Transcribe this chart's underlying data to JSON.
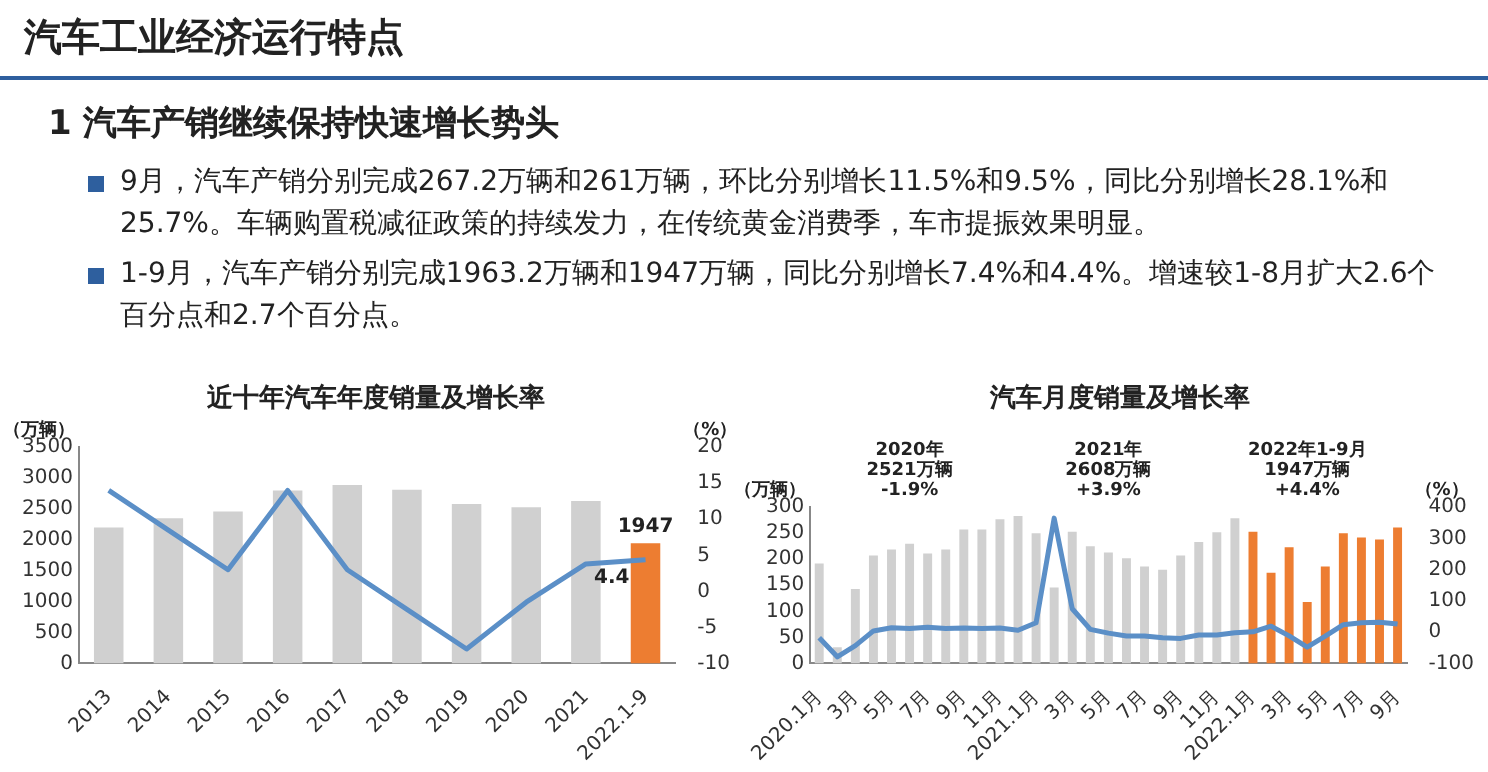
{
  "chart_data": [
    {
      "type": "other",
      "title": "汽车工业经济运行特点",
      "subtitle": "1 汽车产销继续保持快速增长势头",
      "annotations": [
        "9月，汽车产销分别完成267.2万辆和261万辆，环比分别增长11.5%和9.5%，同比分别增长28.1%和25.7%。车辆购置税减征政策的持续发力，在传统黄金消费季，车市提振效果明显。",
        "1-9月，汽车产销分别完成1963.2万辆和1947万辆，同比分别增长7.4%和4.4%。增速较1-8月扩大2.6个百分点和2.7个百分点。"
      ]
    },
    {
      "type": "bar",
      "title": "近十年汽车年度销量及增长率",
      "ylabel": "（万辆）",
      "y2label": "（%）",
      "categories": [
        "2013",
        "2014",
        "2015",
        "2016",
        "2017",
        "2018",
        "2019",
        "2020",
        "2021",
        "2022.1-9"
      ],
      "series": [
        {
          "type": "bar",
          "colors": [
            "#d0d0d0",
            "#d0d0d0",
            "#d0d0d0",
            "#d0d0d0",
            "#d0d0d0",
            "#d0d0d0",
            "#d0d0d0",
            "#d0d0d0",
            "#d0d0d0",
            "#ed7d31"
          ],
          "values": [
            2200,
            2350,
            2460,
            2800,
            2890,
            2810,
            2580,
            2530,
            2630,
            1947
          ],
          "value_labels": [
            null,
            null,
            null,
            null,
            null,
            null,
            null,
            null,
            null,
            "1947"
          ]
        },
        {
          "type": "line",
          "axis": "y2",
          "color": "#5b8fc7",
          "values": [
            14,
            8.5,
            3,
            14,
            3,
            -2.5,
            -8,
            -1.5,
            3.8,
            4.4
          ],
          "value_labels": [
            null,
            null,
            null,
            null,
            null,
            null,
            null,
            null,
            null,
            "4.4"
          ]
        }
      ],
      "ylim": [
        0,
        3500
      ],
      "yticks": [
        0,
        500,
        1000,
        1500,
        2000,
        2500,
        3000,
        3500
      ],
      "y2lim": [
        -10,
        20
      ],
      "y2ticks": [
        -10,
        -5,
        0,
        5,
        10,
        15,
        20
      ],
      "grid": false,
      "legend": false,
      "marker": "none",
      "line_style": "solid"
    },
    {
      "type": "bar",
      "title": "汽车月度销量及增长率",
      "ylabel": "（万辆）",
      "y2label": "（%）",
      "annotations": [
        "2020年\n2521万辆\n-1.9%",
        "2021年\n2608万辆\n+3.9%",
        "2022年1-9月\n1947万辆\n+4.4%"
      ],
      "categories": [
        "2020.1月",
        null,
        "3月",
        null,
        "5月",
        null,
        "7月",
        null,
        "9月",
        null,
        "11月",
        null,
        "2021.1月",
        null,
        "3月",
        null,
        "5月",
        null,
        "7月",
        null,
        "9月",
        null,
        "11月",
        null,
        "2022.1月",
        null,
        "3月",
        null,
        "5月",
        null,
        "7月",
        null,
        "9月"
      ],
      "series": [
        {
          "type": "bar",
          "colors": [
            "#d0d0d0",
            "#d0d0d0",
            "#d0d0d0",
            "#d0d0d0",
            "#d0d0d0",
            "#d0d0d0",
            "#d0d0d0",
            "#d0d0d0",
            "#d0d0d0",
            "#d0d0d0",
            "#d0d0d0",
            "#d0d0d0",
            "#d0d0d0",
            "#d0d0d0",
            "#d0d0d0",
            "#d0d0d0",
            "#d0d0d0",
            "#d0d0d0",
            "#d0d0d0",
            "#d0d0d0",
            "#d0d0d0",
            "#d0d0d0",
            "#d0d0d0",
            "#d0d0d0",
            "#ed7d31",
            "#ed7d31",
            "#ed7d31",
            "#ed7d31",
            "#ed7d31",
            "#ed7d31",
            "#ed7d31",
            "#ed7d31",
            "#ed7d31"
          ],
          "values": [
            192,
            31,
            143,
            207,
            219,
            230,
            211,
            219,
            257,
            257,
            277,
            283,
            250,
            146,
            253,
            225,
            213,
            202,
            186,
            180,
            207,
            233,
            252,
            279,
            253,
            174,
            223,
            118,
            186,
            250,
            242,
            238,
            261
          ]
        },
        {
          "type": "line",
          "axis": "y2",
          "color": "#5b8fc7",
          "values": [
            -18,
            -79,
            -43,
            4,
            14,
            12,
            16,
            12,
            13,
            12,
            13,
            6,
            30,
            365,
            75,
            9,
            -3,
            -12,
            -12,
            -18,
            -20,
            -9,
            -9,
            -2,
            1,
            19,
            -12,
            -48,
            -13,
            24,
            30,
            32,
            26
          ]
        }
      ],
      "ylim": [
        0,
        300
      ],
      "yticks": [
        0,
        50,
        100,
        150,
        200,
        250,
        300
      ],
      "y2lim": [
        -100,
        400
      ],
      "y2ticks": [
        -100,
        0,
        100,
        200,
        300,
        400
      ],
      "grid": false,
      "legend": false,
      "marker": "none",
      "line_style": "solid"
    }
  ]
}
